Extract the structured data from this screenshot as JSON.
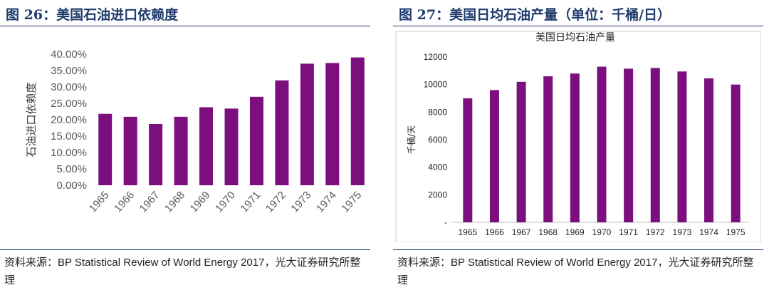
{
  "left": {
    "figure_label": "图 26",
    "figure_title": "美国石油进口依赖度",
    "source_prefix": "资料来源：",
    "source_en": "BP Statistical Review of World Energy 2017",
    "source_suffix": "，光大证券研究所整理",
    "colors": {
      "bar": "#7b0f7e",
      "title": "#1f3b6d"
    }
  },
  "right": {
    "figure_label": "图 27",
    "figure_title": "美国日均石油产量（单位：千桶/日）",
    "source_prefix": "资料来源：",
    "source_en": "BP Statistical Review of World Energy 2017",
    "source_suffix": "，光大证券研究所整理",
    "colors": {
      "bar": "#7b0f7e",
      "title": "#1f3b6d"
    }
  },
  "chart_data": [
    {
      "type": "bar",
      "title": "",
      "xlabel": "",
      "ylabel": "石油进口依赖度",
      "categories": [
        "1965",
        "1966",
        "1967",
        "1968",
        "1969",
        "1970",
        "1971",
        "1972",
        "1973",
        "1974",
        "1975"
      ],
      "values": [
        21.8,
        20.9,
        18.7,
        20.9,
        23.8,
        23.4,
        27.0,
        32.0,
        37.1,
        37.3,
        39.0
      ],
      "ylim": [
        0,
        40
      ],
      "ytick_labels": [
        "0.00%",
        "5.00%",
        "10.00%",
        "15.00%",
        "20.00%",
        "25.00%",
        "30.00%",
        "35.00%",
        "40.00%"
      ],
      "grid": false
    },
    {
      "type": "bar",
      "title": "美国日均石油产量",
      "xlabel": "",
      "ylabel": "千桶/天",
      "categories": [
        "1965",
        "1966",
        "1967",
        "1968",
        "1969",
        "1970",
        "1971",
        "1972",
        "1973",
        "1974",
        "1975"
      ],
      "values": [
        9000,
        9600,
        10200,
        10600,
        10800,
        11300,
        11150,
        11200,
        10950,
        10450,
        10000
      ],
      "ylim": [
        0,
        12000
      ],
      "ytick_labels": [
        "-",
        "2000",
        "4000",
        "6000",
        "8000",
        "10000",
        "12000"
      ],
      "grid": false
    }
  ]
}
